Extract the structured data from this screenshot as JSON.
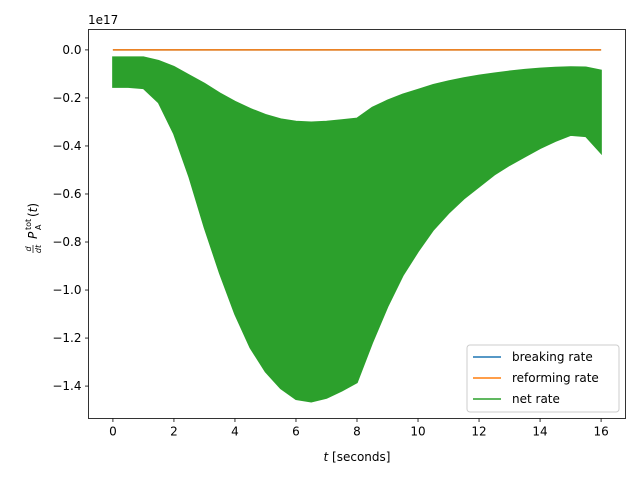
{
  "chart_data": {
    "type": "line",
    "xlabel_italic": "t",
    "xlabel_rest": " [seconds]",
    "ylabel_latex": "d/dt P_A^tot(t)",
    "y_offset_text": "1e17",
    "x_range": [
      -0.8,
      16.8
    ],
    "y_range": [
      -1.535,
      0.085
    ],
    "x_ticks": [
      0,
      2,
      4,
      6,
      8,
      10,
      12,
      14,
      16
    ],
    "y_ticks": [
      0.0,
      -0.2,
      -0.4,
      -0.6,
      -0.8,
      -1.0,
      -1.2,
      -1.4
    ],
    "x_tick_labels": [
      "0",
      "2",
      "4",
      "6",
      "8",
      "10",
      "12",
      "14",
      "16"
    ],
    "y_tick_labels": [
      "0.0",
      "−0.2",
      "−0.4",
      "−0.6",
      "−0.8",
      "−1.0",
      "−1.2",
      "−1.4"
    ],
    "grid": false,
    "legend_placement": "lower-right",
    "series": [
      {
        "name": "breaking rate",
        "color": "#1f77b4",
        "x": [
          0,
          16
        ],
        "y": [
          0,
          0
        ]
      },
      {
        "name": "reforming rate",
        "color": "#ff7f0e",
        "x": [
          0,
          16
        ],
        "y": [
          0,
          0
        ]
      },
      {
        "name": "net rate",
        "color": "#2ca02c",
        "fill_band": true,
        "x": [
          0,
          0.5,
          1,
          1.5,
          2,
          2.5,
          3,
          3.5,
          4,
          4.5,
          5,
          5.5,
          6,
          6.5,
          7,
          7.5,
          8,
          8.5,
          9,
          9.5,
          10,
          10.5,
          11,
          11.5,
          12,
          12.5,
          13,
          13.5,
          14,
          14.5,
          15,
          15.5,
          16
        ],
        "upper": [
          -0.03,
          -0.03,
          -0.03,
          -0.045,
          -0.07,
          -0.105,
          -0.14,
          -0.18,
          -0.215,
          -0.245,
          -0.27,
          -0.288,
          -0.298,
          -0.301,
          -0.298,
          -0.292,
          -0.285,
          -0.24,
          -0.21,
          -0.185,
          -0.165,
          -0.145,
          -0.13,
          -0.117,
          -0.106,
          -0.097,
          -0.089,
          -0.082,
          -0.077,
          -0.073,
          -0.071,
          -0.072,
          -0.085
        ],
        "lower": [
          -0.155,
          -0.155,
          -0.16,
          -0.22,
          -0.35,
          -0.53,
          -0.74,
          -0.93,
          -1.1,
          -1.24,
          -1.34,
          -1.41,
          -1.455,
          -1.465,
          -1.45,
          -1.42,
          -1.385,
          -1.22,
          -1.07,
          -0.94,
          -0.84,
          -0.75,
          -0.68,
          -0.62,
          -0.57,
          -0.52,
          -0.48,
          -0.445,
          -0.41,
          -0.38,
          -0.355,
          -0.36,
          -0.43
        ]
      }
    ]
  }
}
